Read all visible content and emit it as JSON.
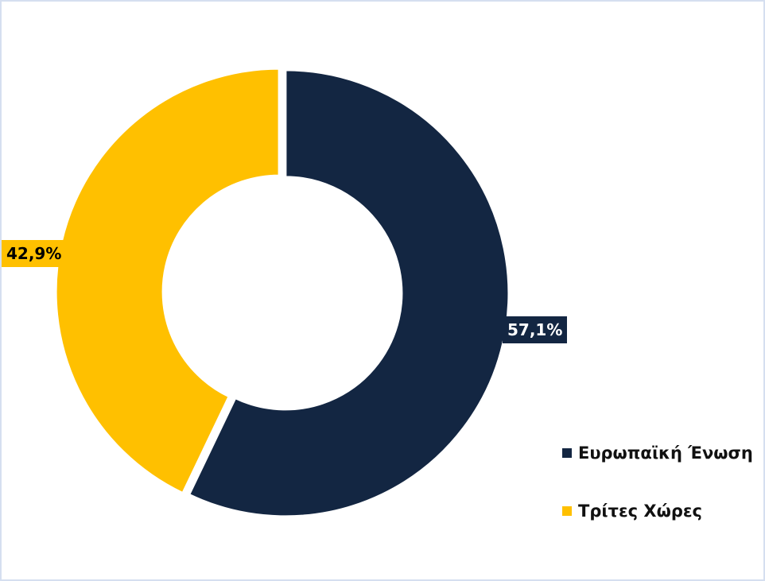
{
  "chart_data": {
    "type": "pie",
    "variant": "donut",
    "categories": [
      "Ευρωπαϊκή Ένωση",
      "Τρίτες Χώρες"
    ],
    "values": [
      57.1,
      42.9
    ],
    "data_labels": [
      "57,1%",
      "42,9%"
    ],
    "colors": [
      "#132642",
      "#ffc000"
    ],
    "label_text_colors": [
      "#ffffff",
      "#000000"
    ],
    "legend_position": "bottom-right",
    "start_angle": "top, clockwise"
  }
}
